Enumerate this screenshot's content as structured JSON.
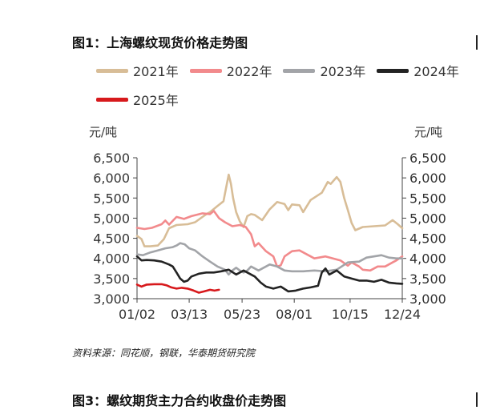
{
  "figure1_title": "图1：上海螺纹现货价格走势图",
  "figure3_title": "图3：螺纹期货主力合约收盘价走势图",
  "source_note": "资料来源：同花顺，钢联，华泰期货研究院",
  "chart_data": {
    "type": "line",
    "title": "图1：上海螺纹现货价格走势图",
    "y_unit_left": "元/吨",
    "y_unit_right": "元/吨",
    "ylim": [
      3000,
      6500
    ],
    "yticks": [
      "6,500",
      "6,000",
      "5,500",
      "5,000",
      "4,500",
      "4,000",
      "3,500",
      "3,000"
    ],
    "ytick_values": [
      6500,
      6000,
      5500,
      5000,
      4500,
      4000,
      3500,
      3000
    ],
    "xtick_labels": [
      "01/02",
      "03/13",
      "05/23",
      "08/01",
      "10/15",
      "12/24"
    ],
    "xtick_days": [
      2,
      72,
      143,
      213,
      288,
      358
    ],
    "xlim": [
      2,
      358
    ],
    "legend_position": "top",
    "grid": false,
    "series": [
      {
        "name": "2021年",
        "color": "#d8bd97",
        "points": [
          [
            2,
            4560
          ],
          [
            8,
            4480
          ],
          [
            12,
            4300
          ],
          [
            20,
            4300
          ],
          [
            30,
            4320
          ],
          [
            38,
            4480
          ],
          [
            45,
            4750
          ],
          [
            55,
            4830
          ],
          [
            70,
            4850
          ],
          [
            80,
            4900
          ],
          [
            95,
            5100
          ],
          [
            100,
            5150
          ],
          [
            110,
            5300
          ],
          [
            118,
            5420
          ],
          [
            122,
            5800
          ],
          [
            125,
            6080
          ],
          [
            128,
            5850
          ],
          [
            131,
            5500
          ],
          [
            135,
            5150
          ],
          [
            140,
            4920
          ],
          [
            145,
            4780
          ],
          [
            150,
            5050
          ],
          [
            155,
            5100
          ],
          [
            160,
            5080
          ],
          [
            170,
            4950
          ],
          [
            180,
            5220
          ],
          [
            190,
            5400
          ],
          [
            200,
            5350
          ],
          [
            205,
            5200
          ],
          [
            210,
            5340
          ],
          [
            220,
            5320
          ],
          [
            225,
            5150
          ],
          [
            235,
            5450
          ],
          [
            250,
            5630
          ],
          [
            258,
            5900
          ],
          [
            262,
            5850
          ],
          [
            270,
            6020
          ],
          [
            275,
            5900
          ],
          [
            280,
            5500
          ],
          [
            285,
            5200
          ],
          [
            290,
            4880
          ],
          [
            295,
            4700
          ],
          [
            305,
            4780
          ],
          [
            320,
            4800
          ],
          [
            335,
            4820
          ],
          [
            345,
            4950
          ],
          [
            352,
            4850
          ],
          [
            358,
            4750
          ]
        ]
      },
      {
        "name": "2022年",
        "color": "#f28a8c",
        "points": [
          [
            2,
            4760
          ],
          [
            12,
            4730
          ],
          [
            22,
            4760
          ],
          [
            35,
            4850
          ],
          [
            40,
            4940
          ],
          [
            45,
            4840
          ],
          [
            55,
            5030
          ],
          [
            65,
            4980
          ],
          [
            75,
            5050
          ],
          [
            90,
            5120
          ],
          [
            100,
            5100
          ],
          [
            105,
            5180
          ],
          [
            112,
            5000
          ],
          [
            120,
            4900
          ],
          [
            130,
            4800
          ],
          [
            140,
            4830
          ],
          [
            148,
            4780
          ],
          [
            155,
            4600
          ],
          [
            160,
            4300
          ],
          [
            165,
            4380
          ],
          [
            175,
            4180
          ],
          [
            185,
            4050
          ],
          [
            190,
            3800
          ],
          [
            195,
            3830
          ],
          [
            200,
            4050
          ],
          [
            210,
            4180
          ],
          [
            220,
            4200
          ],
          [
            230,
            4100
          ],
          [
            240,
            4000
          ],
          [
            255,
            4050
          ],
          [
            265,
            4000
          ],
          [
            275,
            3950
          ],
          [
            285,
            3820
          ],
          [
            290,
            3900
          ],
          [
            300,
            3800
          ],
          [
            305,
            3720
          ],
          [
            315,
            3700
          ],
          [
            325,
            3800
          ],
          [
            335,
            3800
          ],
          [
            345,
            3900
          ],
          [
            350,
            3950
          ],
          [
            358,
            4050
          ]
        ]
      },
      {
        "name": "2023年",
        "color": "#a2a4a8",
        "points": [
          [
            2,
            4100
          ],
          [
            10,
            4080
          ],
          [
            20,
            4150
          ],
          [
            30,
            4200
          ],
          [
            40,
            4250
          ],
          [
            50,
            4280
          ],
          [
            55,
            4320
          ],
          [
            60,
            4380
          ],
          [
            66,
            4350
          ],
          [
            72,
            4250
          ],
          [
            80,
            4200
          ],
          [
            90,
            4050
          ],
          [
            100,
            3920
          ],
          [
            110,
            3800
          ],
          [
            120,
            3720
          ],
          [
            125,
            3600
          ],
          [
            130,
            3700
          ],
          [
            135,
            3770
          ],
          [
            140,
            3700
          ],
          [
            145,
            3650
          ],
          [
            150,
            3700
          ],
          [
            155,
            3800
          ],
          [
            165,
            3700
          ],
          [
            175,
            3800
          ],
          [
            180,
            3850
          ],
          [
            190,
            3800
          ],
          [
            200,
            3700
          ],
          [
            210,
            3680
          ],
          [
            225,
            3680
          ],
          [
            240,
            3700
          ],
          [
            255,
            3680
          ],
          [
            270,
            3720
          ],
          [
            285,
            3900
          ],
          [
            300,
            3920
          ],
          [
            310,
            4020
          ],
          [
            320,
            4050
          ],
          [
            330,
            4080
          ],
          [
            340,
            4020
          ],
          [
            350,
            4000
          ],
          [
            358,
            4000
          ]
        ]
      },
      {
        "name": "2024年",
        "color": "#232323",
        "points": [
          [
            2,
            4050
          ],
          [
            8,
            3950
          ],
          [
            15,
            3960
          ],
          [
            25,
            3950
          ],
          [
            35,
            3920
          ],
          [
            45,
            3850
          ],
          [
            50,
            3800
          ],
          [
            55,
            3650
          ],
          [
            60,
            3500
          ],
          [
            65,
            3420
          ],
          [
            70,
            3450
          ],
          [
            75,
            3550
          ],
          [
            85,
            3620
          ],
          [
            95,
            3650
          ],
          [
            105,
            3650
          ],
          [
            115,
            3680
          ],
          [
            125,
            3720
          ],
          [
            135,
            3600
          ],
          [
            145,
            3700
          ],
          [
            150,
            3650
          ],
          [
            160,
            3550
          ],
          [
            168,
            3400
          ],
          [
            175,
            3300
          ],
          [
            185,
            3250
          ],
          [
            195,
            3300
          ],
          [
            205,
            3180
          ],
          [
            215,
            3200
          ],
          [
            225,
            3250
          ],
          [
            235,
            3280
          ],
          [
            245,
            3320
          ],
          [
            250,
            3650
          ],
          [
            255,
            3750
          ],
          [
            260,
            3600
          ],
          [
            270,
            3700
          ],
          [
            280,
            3550
          ],
          [
            290,
            3500
          ],
          [
            300,
            3450
          ],
          [
            310,
            3450
          ],
          [
            320,
            3420
          ],
          [
            330,
            3470
          ],
          [
            340,
            3400
          ],
          [
            350,
            3380
          ],
          [
            358,
            3370
          ]
        ]
      },
      {
        "name": "2025年",
        "color": "#d7191c",
        "points": [
          [
            2,
            3350
          ],
          [
            8,
            3300
          ],
          [
            15,
            3350
          ],
          [
            25,
            3360
          ],
          [
            35,
            3360
          ],
          [
            42,
            3330
          ],
          [
            48,
            3280
          ],
          [
            55,
            3250
          ],
          [
            62,
            3270
          ],
          [
            70,
            3250
          ],
          [
            78,
            3200
          ],
          [
            85,
            3150
          ],
          [
            92,
            3180
          ],
          [
            100,
            3220
          ],
          [
            106,
            3200
          ],
          [
            112,
            3220
          ]
        ]
      }
    ]
  }
}
